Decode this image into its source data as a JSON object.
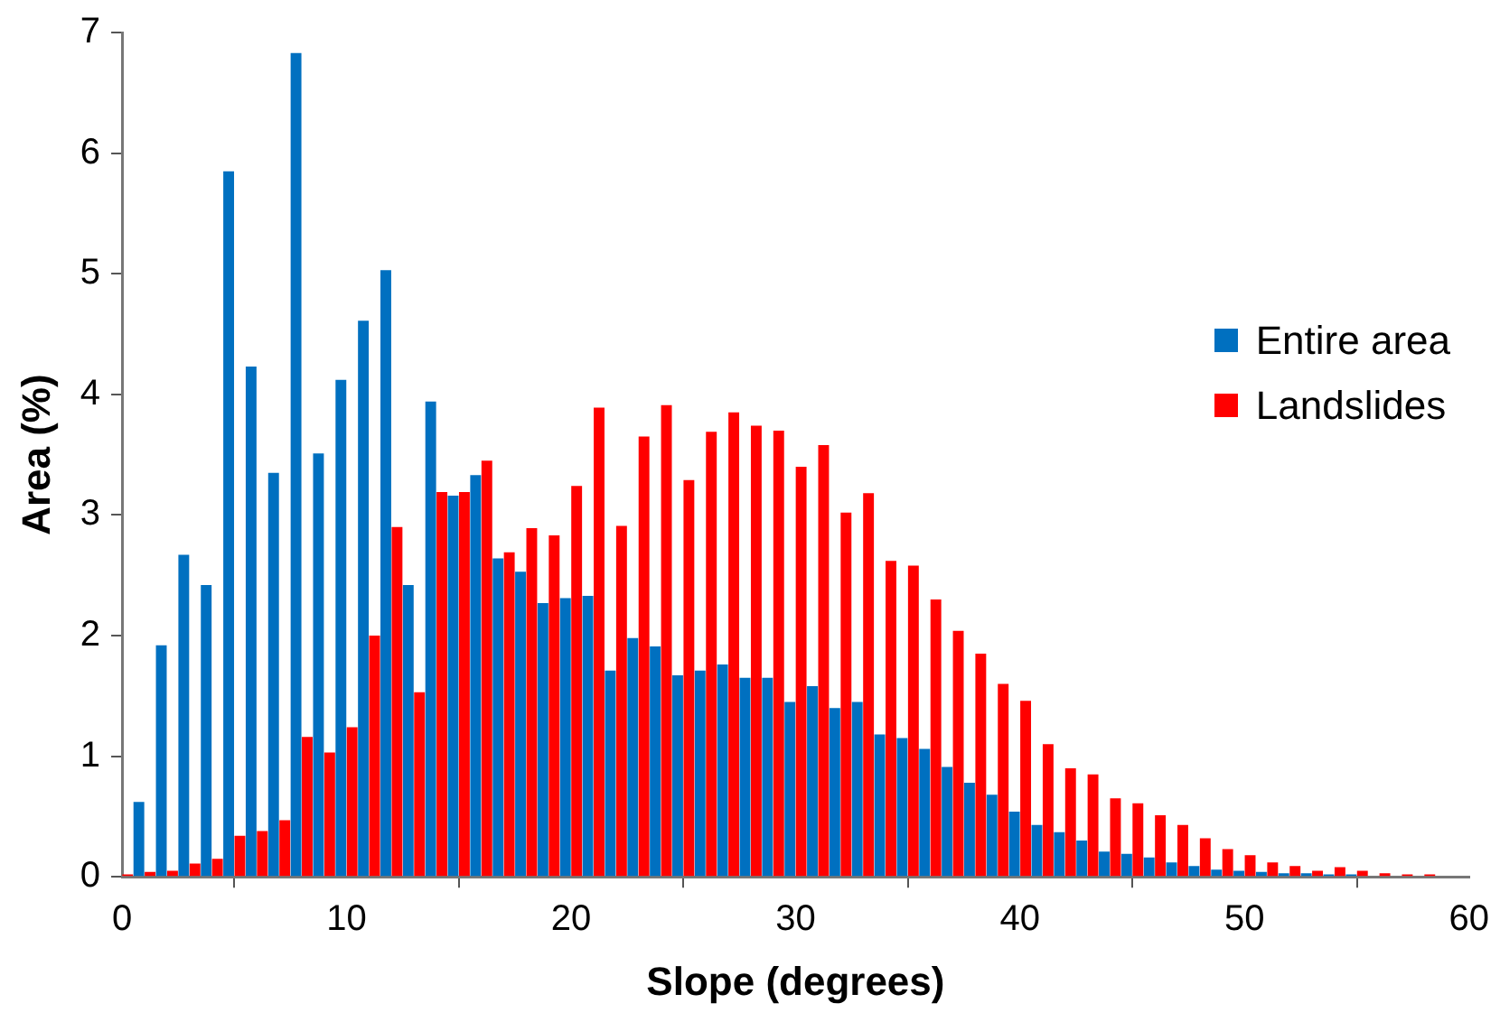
{
  "chart_data": {
    "type": "bar",
    "xlabel": "Slope (degrees)",
    "ylabel": "Area (%)",
    "x": [
      0.5,
      1.5,
      2.5,
      3.5,
      4.5,
      5.5,
      6.5,
      7.5,
      8.5,
      9.5,
      10.5,
      11.5,
      12.5,
      13.5,
      14.5,
      15.5,
      16.5,
      17.5,
      18.5,
      19.5,
      20.5,
      21.5,
      22.5,
      23.5,
      24.5,
      25.5,
      26.5,
      27.5,
      28.5,
      29.5,
      30.5,
      31.5,
      32.5,
      33.5,
      34.5,
      35.5,
      36.5,
      37.5,
      38.5,
      39.5,
      40.5,
      41.5,
      42.5,
      43.5,
      44.5,
      45.5,
      46.5,
      47.5,
      48.5,
      49.5,
      50.5,
      51.5,
      52.5,
      53.5,
      54.5,
      55.5,
      56.5,
      57.5,
      58.5
    ],
    "series": [
      {
        "name": "Entire area",
        "color": "#0070c0",
        "values": [
          0.62,
          1.92,
          2.67,
          2.42,
          5.85,
          4.23,
          3.35,
          6.83,
          3.51,
          4.12,
          4.61,
          5.03,
          2.42,
          3.94,
          3.16,
          3.33,
          2.64,
          2.53,
          2.27,
          2.31,
          2.33,
          1.71,
          1.98,
          1.91,
          1.67,
          1.71,
          1.76,
          1.65,
          1.65,
          1.45,
          1.58,
          1.4,
          1.45,
          1.18,
          1.15,
          1.06,
          0.91,
          0.78,
          0.68,
          0.54,
          0.43,
          0.37,
          0.3,
          0.21,
          0.19,
          0.16,
          0.12,
          0.09,
          0.06,
          0.05,
          0.04,
          0.03,
          0.03,
          0.02,
          0.02,
          null,
          null,
          null,
          null
        ]
      },
      {
        "name": "Landslides",
        "color": "#ff0000",
        "values": [
          0.02,
          0.04,
          0.05,
          0.11,
          0.15,
          0.34,
          0.38,
          0.47,
          1.16,
          1.03,
          1.24,
          2.0,
          2.9,
          1.53,
          3.19,
          3.19,
          3.45,
          2.69,
          2.89,
          2.83,
          3.24,
          3.89,
          2.91,
          3.65,
          3.91,
          3.29,
          3.69,
          3.85,
          3.74,
          3.7,
          3.4,
          3.58,
          3.02,
          3.18,
          2.62,
          2.58,
          2.3,
          2.04,
          1.85,
          1.6,
          1.46,
          1.1,
          0.9,
          0.85,
          0.65,
          0.61,
          0.51,
          0.43,
          0.32,
          0.23,
          0.18,
          0.12,
          0.09,
          0.05,
          0.08,
          0.05,
          0.03,
          0.02,
          0.02
        ]
      }
    ],
    "xlim": [
      0,
      60
    ],
    "xticks": [
      0,
      10,
      20,
      30,
      40,
      50,
      60
    ],
    "ylim": [
      0,
      7
    ],
    "yticks": [
      0,
      1,
      2,
      3,
      4,
      5,
      6,
      7
    ],
    "grid": false,
    "legend": "right"
  }
}
